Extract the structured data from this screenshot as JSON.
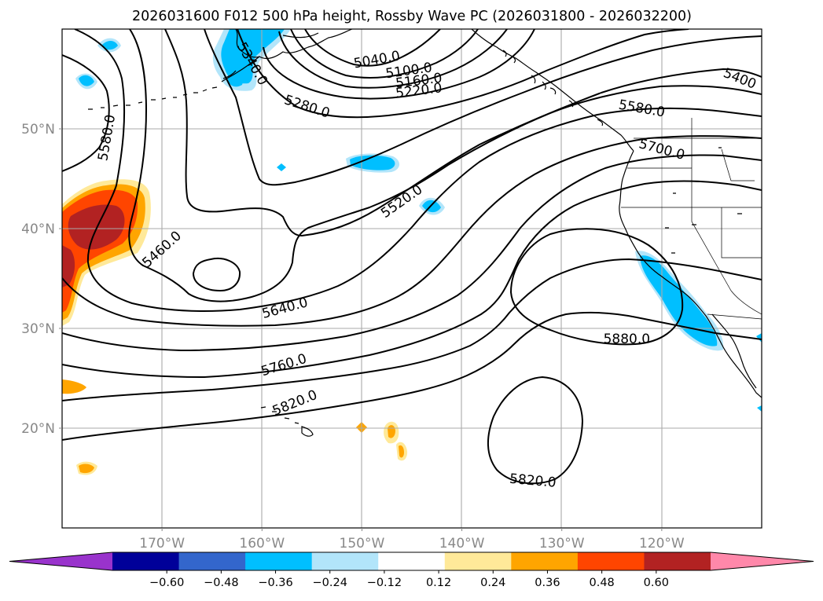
{
  "title": "2026031600 F012 500 hPa height, Rossby Wave PC (2026031800 - 2026032200)",
  "map": {
    "lon_range": [
      -180,
      -110
    ],
    "lat_range": [
      10,
      60
    ],
    "lon_ticks": [
      {
        "value": -170,
        "label": "170°W"
      },
      {
        "value": -160,
        "label": "160°W"
      },
      {
        "value": -150,
        "label": "150°W"
      },
      {
        "value": -140,
        "label": "140°W"
      },
      {
        "value": -130,
        "label": "130°W"
      },
      {
        "value": -120,
        "label": "120°W"
      }
    ],
    "lat_ticks": [
      {
        "value": 20,
        "label": "20°N"
      },
      {
        "value": 30,
        "label": "30°N"
      },
      {
        "value": 40,
        "label": "40°N"
      },
      {
        "value": 50,
        "label": "50°N"
      }
    ],
    "contour_labels": [
      {
        "text": "5040.0",
        "lon": -148.5,
        "lat": 56.9,
        "rot": -10
      },
      {
        "text": "5100.0",
        "lon": -145.3,
        "lat": 55.8,
        "rot": -8
      },
      {
        "text": "5160.0",
        "lon": -144.3,
        "lat": 54.8,
        "rot": -7
      },
      {
        "text": "5220.0",
        "lon": -144.3,
        "lat": 53.8,
        "rot": -7
      },
      {
        "text": "5280.0",
        "lon": -155.5,
        "lat": 52.2,
        "rot": 18
      },
      {
        "text": "5340.0",
        "lon": -161.0,
        "lat": 56.5,
        "rot": 60
      },
      {
        "text": "5400",
        "lon": -112.2,
        "lat": 55.0,
        "rot": 22
      },
      {
        "text": "5460.0",
        "lon": -170.0,
        "lat": 37.9,
        "rot": -42
      },
      {
        "text": "5520.0",
        "lon": -146.0,
        "lat": 42.7,
        "rot": -35
      },
      {
        "text": "5580.0",
        "lon": -122.0,
        "lat": 52.0,
        "rot": 10
      },
      {
        "text": "5580.0",
        "lon": -175.5,
        "lat": 49.1,
        "rot": -80
      },
      {
        "text": "5640.0",
        "lon": -157.7,
        "lat": 32.0,
        "rot": -15
      },
      {
        "text": "5700.0",
        "lon": -120.0,
        "lat": 47.9,
        "rot": 15
      },
      {
        "text": "5760.0",
        "lon": -157.8,
        "lat": 26.3,
        "rot": -17
      },
      {
        "text": "5820.0",
        "lon": -156.7,
        "lat": 22.5,
        "rot": -22
      },
      {
        "text": "5820.0",
        "lon": -132.9,
        "lat": 14.7,
        "rot": 5
      },
      {
        "text": "5880.0",
        "lon": -123.5,
        "lat": 28.9,
        "rot": 0
      }
    ]
  },
  "colorbar": {
    "ticks": [
      "−0.60",
      "−0.48",
      "−0.36",
      "−0.24",
      "−0.12",
      "0.12",
      "0.24",
      "0.36",
      "0.48",
      "0.60"
    ],
    "colors": [
      "#9933cc",
      "#000099",
      "#3366cc",
      "#00bfff",
      "#b2e5fa",
      "#ffffff",
      "#ffe999",
      "#ffa500",
      "#ff4500",
      "#b22222",
      "#ff88aa"
    ]
  }
}
